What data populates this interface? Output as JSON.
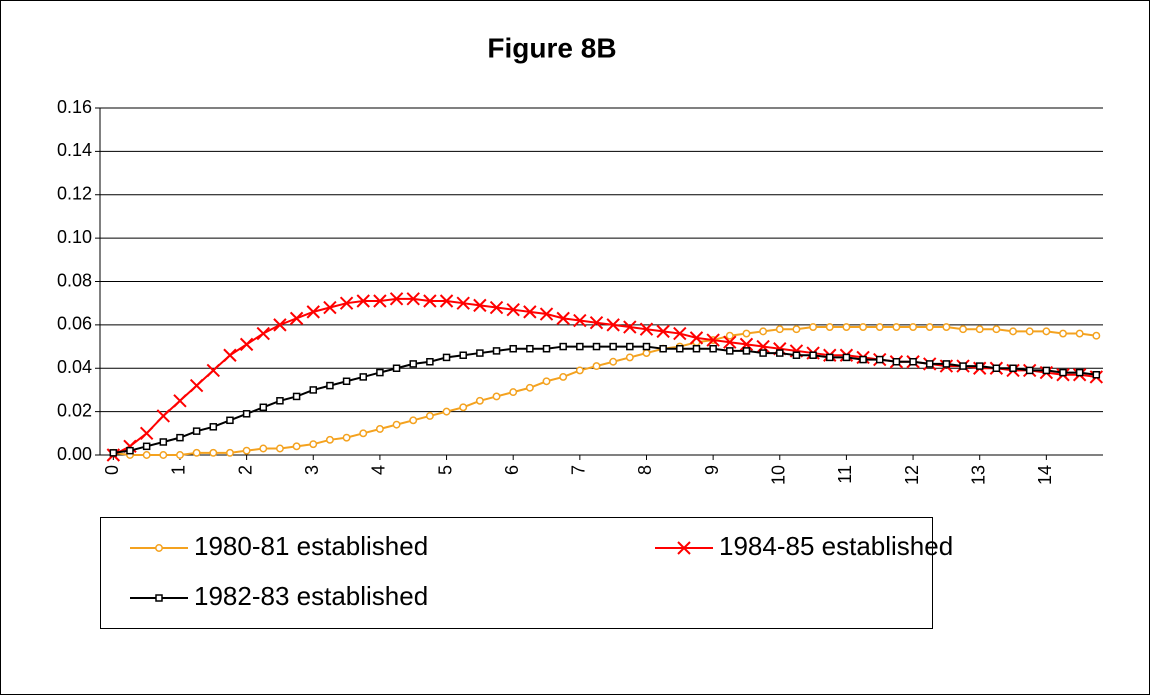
{
  "chart_data": {
    "type": "line",
    "title": "Figure 8B",
    "x": [
      0,
      0.25,
      0.5,
      0.75,
      1,
      1.25,
      1.5,
      1.75,
      2,
      2.25,
      2.5,
      2.75,
      3,
      3.25,
      3.5,
      3.75,
      4,
      4.25,
      4.5,
      4.75,
      5,
      5.25,
      5.5,
      5.75,
      6,
      6.25,
      6.5,
      6.75,
      7,
      7.25,
      7.5,
      7.75,
      8,
      8.25,
      8.5,
      8.75,
      9,
      9.25,
      9.5,
      9.75,
      10,
      10.25,
      10.5,
      10.75,
      11,
      11.25,
      11.5,
      11.75,
      12,
      12.25,
      12.5,
      12.75,
      13,
      13.25,
      13.5,
      13.75,
      14,
      14.25,
      14.5,
      14.75
    ],
    "xlim": [
      -0.2,
      14.85
    ],
    "xticks": [
      0,
      1,
      2,
      3,
      4,
      5,
      6,
      7,
      8,
      9,
      10,
      11,
      12,
      13,
      14
    ],
    "ylim": [
      0,
      0.16
    ],
    "yticks": [
      {
        "value": 0,
        "label": "0.00"
      },
      {
        "value": 0.02,
        "label": "0.02"
      },
      {
        "value": 0.04,
        "label": "0.04"
      },
      {
        "value": 0.06,
        "label": "0.06"
      },
      {
        "value": 0.08,
        "label": "0.08"
      },
      {
        "value": 0.1,
        "label": "0.10"
      },
      {
        "value": 0.12,
        "label": "0.12"
      },
      {
        "value": 0.14,
        "label": "0.14"
      },
      {
        "value": 0.16,
        "label": "0.16"
      }
    ],
    "grid": true,
    "legend": "bottom",
    "series": [
      {
        "name": "1980-81 established",
        "color": "#f4a21f",
        "marker": "circle",
        "values": [
          0.001,
          0,
          0,
          0,
          0,
          0.001,
          0.001,
          0.001,
          0.002,
          0.003,
          0.003,
          0.004,
          0.005,
          0.007,
          0.008,
          0.01,
          0.012,
          0.014,
          0.016,
          0.018,
          0.02,
          0.022,
          0.025,
          0.027,
          0.029,
          0.031,
          0.034,
          0.036,
          0.039,
          0.041,
          0.043,
          0.045,
          0.047,
          0.049,
          0.05,
          0.052,
          0.053,
          0.055,
          0.056,
          0.057,
          0.058,
          0.058,
          0.059,
          0.059,
          0.059,
          0.059,
          0.059,
          0.059,
          0.059,
          0.059,
          0.059,
          0.058,
          0.058,
          0.058,
          0.057,
          0.057,
          0.057,
          0.056,
          0.056,
          0.055
        ]
      },
      {
        "name": "1984-85 established",
        "color": "#ff0000",
        "marker": "x",
        "values": [
          0,
          0.004,
          0.01,
          0.018,
          0.025,
          0.032,
          0.039,
          0.046,
          0.051,
          0.056,
          0.06,
          0.063,
          0.066,
          0.068,
          0.07,
          0.071,
          0.071,
          0.072,
          0.072,
          0.071,
          0.071,
          0.07,
          0.069,
          0.068,
          0.067,
          0.066,
          0.065,
          0.063,
          0.062,
          0.061,
          0.06,
          0.059,
          0.058,
          0.057,
          0.056,
          0.054,
          0.053,
          0.052,
          0.051,
          0.05,
          0.049,
          0.048,
          0.047,
          0.046,
          0.046,
          0.045,
          0.044,
          0.043,
          0.043,
          0.042,
          0.041,
          0.041,
          0.04,
          0.04,
          0.039,
          0.039,
          0.038,
          0.037,
          0.037,
          0.036
        ]
      },
      {
        "name": "1982-83 established",
        "color": "#000000",
        "marker": "square",
        "values": [
          0.001,
          0.002,
          0.004,
          0.006,
          0.008,
          0.011,
          0.013,
          0.016,
          0.019,
          0.022,
          0.025,
          0.027,
          0.03,
          0.032,
          0.034,
          0.036,
          0.038,
          0.04,
          0.042,
          0.043,
          0.045,
          0.046,
          0.047,
          0.048,
          0.049,
          0.049,
          0.049,
          0.05,
          0.05,
          0.05,
          0.05,
          0.05,
          0.05,
          0.049,
          0.049,
          0.049,
          0.049,
          0.048,
          0.048,
          0.047,
          0.047,
          0.046,
          0.046,
          0.045,
          0.045,
          0.044,
          0.044,
          0.043,
          0.043,
          0.042,
          0.042,
          0.041,
          0.041,
          0.04,
          0.04,
          0.039,
          0.039,
          0.038,
          0.038,
          0.037
        ]
      }
    ]
  }
}
